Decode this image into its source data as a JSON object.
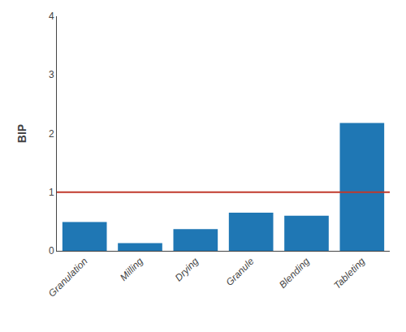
{
  "chart_data": {
    "type": "bar",
    "categories": [
      "Granulation",
      "Milling",
      "Drying",
      "Granule",
      "Blending",
      "Tableting"
    ],
    "values": [
      0.49,
      0.13,
      0.37,
      0.65,
      0.6,
      2.18
    ],
    "ylabel": "BIP",
    "ylim": [
      0,
      4
    ],
    "yticks": [
      0,
      1,
      2,
      3,
      4
    ],
    "grid": false,
    "threshold": {
      "value": 1.0,
      "color": "#c0392b"
    }
  }
}
